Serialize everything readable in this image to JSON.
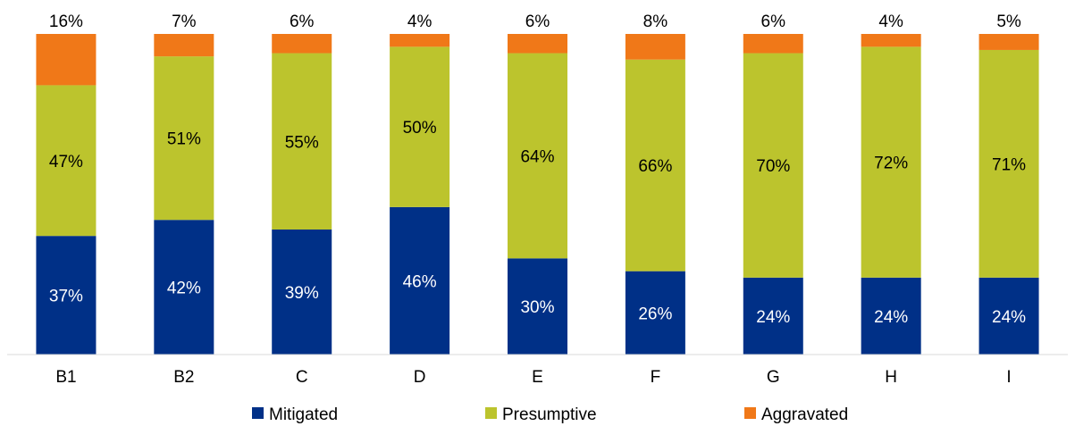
{
  "chart_data": {
    "type": "bar",
    "stacked": true,
    "normalized": true,
    "categories": [
      "B1",
      "B2",
      "C",
      "D",
      "E",
      "F",
      "G",
      "H",
      "I"
    ],
    "series": [
      {
        "name": "Mitigated",
        "color": "#003087",
        "label_color": "#ffffff",
        "values": [
          37,
          42,
          39,
          46,
          30,
          26,
          24,
          24,
          24
        ],
        "labels": [
          "37%",
          "42%",
          "39%",
          "46%",
          "30%",
          "26%",
          "24%",
          "24%",
          "24%"
        ]
      },
      {
        "name": "Presumptive",
        "color": "#BCC42D",
        "label_color": "#000000",
        "values": [
          47,
          51,
          55,
          50,
          64,
          66,
          70,
          72,
          71
        ],
        "labels": [
          "47%",
          "51%",
          "55%",
          "50%",
          "64%",
          "66%",
          "70%",
          "72%",
          "71%"
        ]
      },
      {
        "name": "Aggravated",
        "color": "#F07818",
        "label_color": "#000000",
        "values": [
          16,
          7,
          6,
          4,
          6,
          8,
          6,
          4,
          5
        ],
        "labels": [
          "16%",
          "7%",
          "6%",
          "4%",
          "6%",
          "8%",
          "6%",
          "4%",
          "5%"
        ]
      }
    ],
    "ylim": [
      0,
      100
    ],
    "grid": false,
    "legend_position": "bottom",
    "title": "",
    "xlabel": "",
    "ylabel": ""
  }
}
